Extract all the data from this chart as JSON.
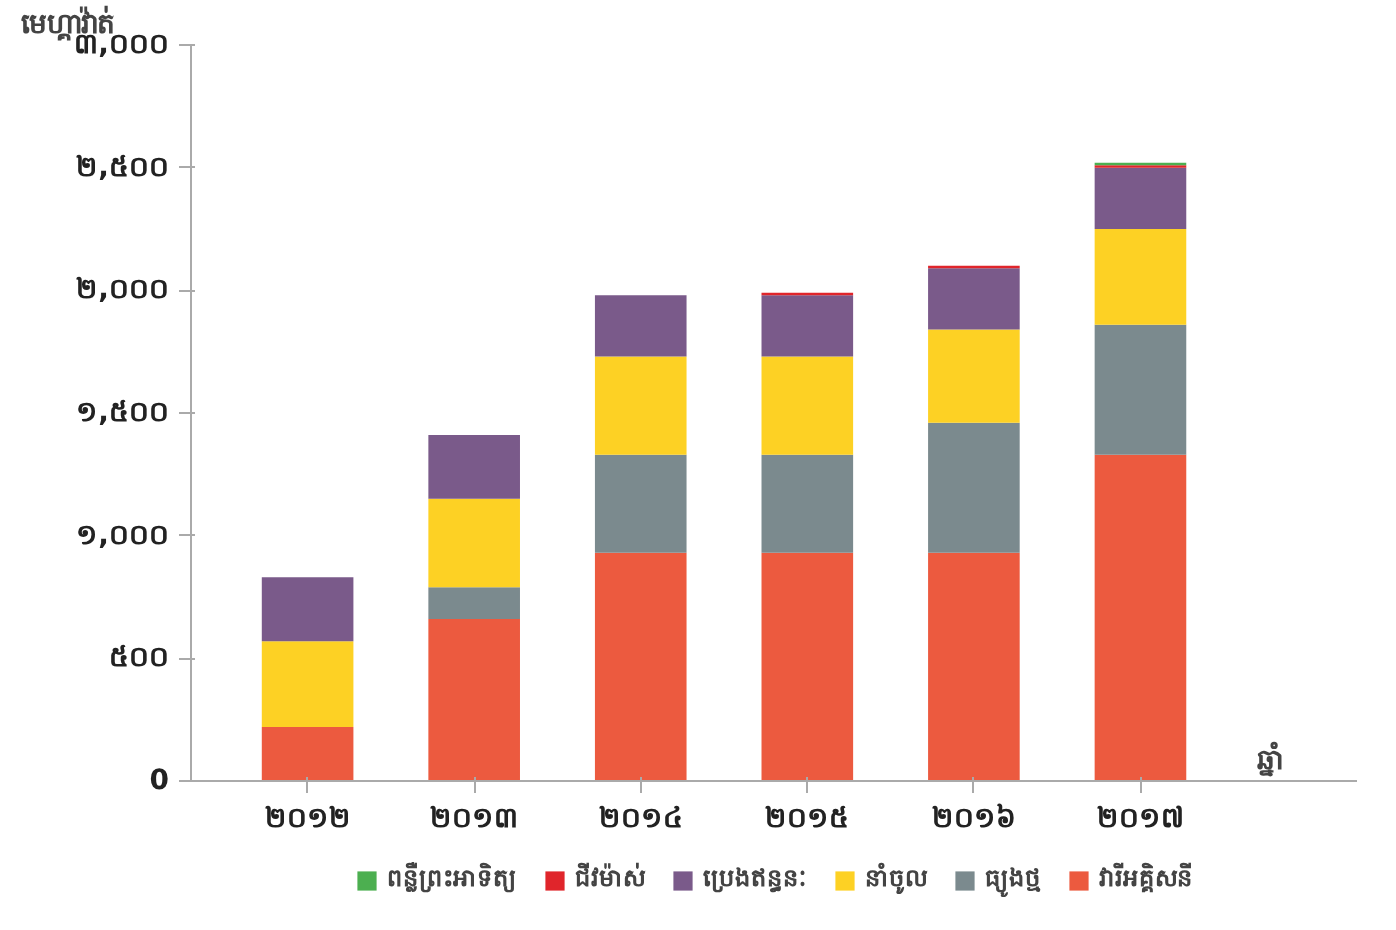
{
  "chart_data": {
    "type": "bar",
    "stacked": true,
    "ylabel": "មេហ្គាវ៉ាត់",
    "xlabel": "ឆ្នាំ",
    "categories": [
      "២០១២",
      "២០១៣",
      "២០១៤",
      "២០១៥",
      "២០១៦",
      "២០១៧"
    ],
    "series": [
      {
        "name": "វារីអគ្គិសនី",
        "color": "#ec5a3f",
        "values": [
          220,
          660,
          930,
          930,
          930,
          1330
        ]
      },
      {
        "name": "ធ្យូងថ្ម",
        "color": "#7b8a8e",
        "values": [
          0,
          130,
          400,
          400,
          530,
          530
        ]
      },
      {
        "name": "នាំចូល",
        "color": "#fdd124",
        "values": [
          350,
          360,
          400,
          400,
          380,
          390
        ]
      },
      {
        "name": "ប្រេងឥន្ធនៈ",
        "color": "#7a5a8a",
        "values": [
          260,
          260,
          250,
          250,
          250,
          250
        ]
      },
      {
        "name": "ជីវម៉ាស់",
        "color": "#e0252b",
        "values": [
          0,
          0,
          0,
          10,
          10,
          10
        ]
      },
      {
        "name": "ពន្លឺព្រះអាទិត្យ",
        "color": "#4caf50",
        "values": [
          0,
          0,
          0,
          0,
          0,
          10
        ]
      }
    ],
    "ylim": [
      0,
      3000
    ],
    "yticks": [
      0,
      {
        "value": 500,
        "label": "៥០០"
      },
      {
        "value": 1000,
        "label": "១,០០០"
      },
      {
        "value": 1500,
        "label": "១,៥០០"
      },
      {
        "value": 2000,
        "label": "២,០០០"
      },
      {
        "value": 2500,
        "label": "២,៥០០"
      },
      {
        "value": 3000,
        "label": "៣,០០០"
      }
    ],
    "grid": false,
    "legend": "bottom"
  }
}
